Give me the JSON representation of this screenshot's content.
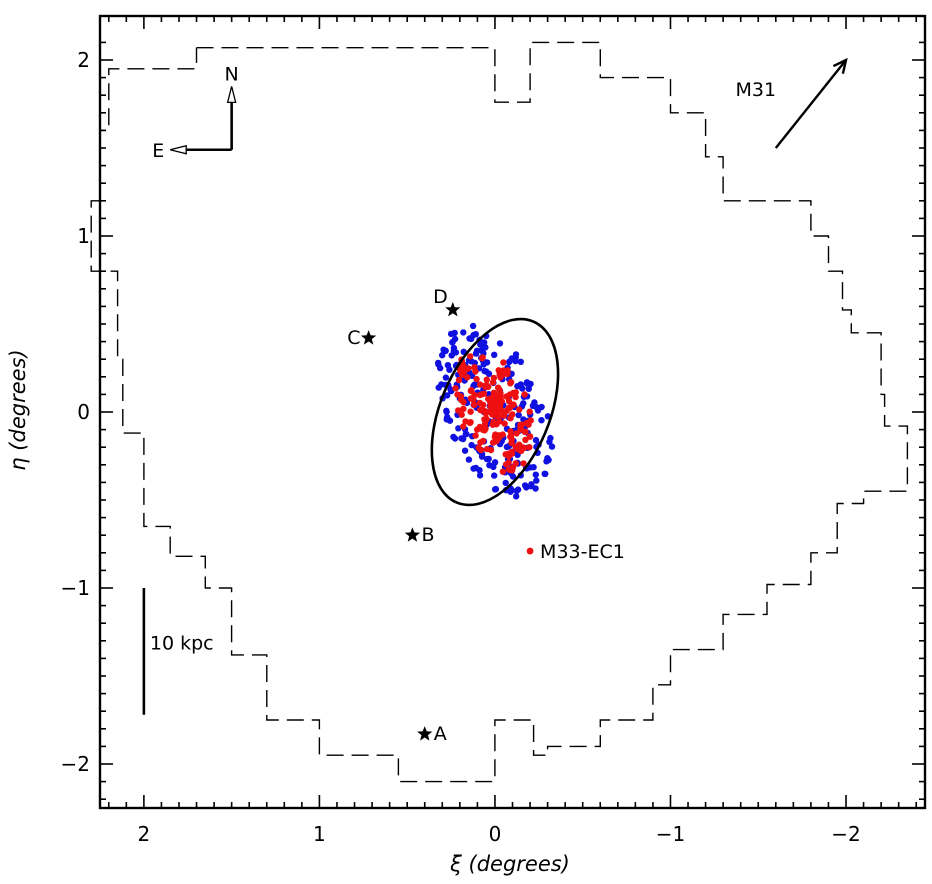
{
  "chart_data": {
    "type": "scatter",
    "title": "",
    "xlabel": "ξ  (degrees)",
    "ylabel": "η  (degrees)",
    "xlim": [
      2.25,
      -2.45
    ],
    "ylim": [
      -2.25,
      2.25
    ],
    "x_ticks": [
      2,
      1,
      0,
      -1,
      -2
    ],
    "x_tick_labels": [
      "2",
      "1",
      "0",
      "−1",
      "−2"
    ],
    "y_ticks": [
      -2,
      -1,
      0,
      1,
      2
    ],
    "y_tick_labels": [
      "−2",
      "−1",
      "0",
      "1",
      "2"
    ],
    "colors": {
      "blue": "#1010e0",
      "red": "#ee1010",
      "ink": "#000000"
    },
    "footprint": {
      "style": "dashed",
      "points": [
        [
          1.7,
          2.07
        ],
        [
          0.0,
          2.07
        ],
        [
          0.0,
          1.76
        ],
        [
          -0.2,
          1.76
        ],
        [
          -0.2,
          2.1
        ],
        [
          -0.6,
          2.1
        ],
        [
          -0.6,
          1.9
        ],
        [
          -1.0,
          1.9
        ],
        [
          -1.0,
          1.7
        ],
        [
          -1.2,
          1.7
        ],
        [
          -1.2,
          1.45
        ],
        [
          -1.3,
          1.45
        ],
        [
          -1.3,
          1.2
        ],
        [
          -1.8,
          1.2
        ],
        [
          -1.8,
          1.0
        ],
        [
          -1.9,
          1.0
        ],
        [
          -1.9,
          0.8
        ],
        [
          -1.98,
          0.8
        ],
        [
          -1.98,
          0.58
        ],
        [
          -2.03,
          0.58
        ],
        [
          -2.03,
          0.45
        ],
        [
          -2.2,
          0.45
        ],
        [
          -2.2,
          0.1
        ],
        [
          -2.22,
          0.1
        ],
        [
          -2.22,
          -0.08
        ],
        [
          -2.35,
          -0.08
        ],
        [
          -2.35,
          -0.45
        ],
        [
          -2.1,
          -0.45
        ],
        [
          -2.1,
          -0.52
        ],
        [
          -1.95,
          -0.52
        ],
        [
          -1.95,
          -0.8
        ],
        [
          -1.8,
          -0.8
        ],
        [
          -1.8,
          -0.98
        ],
        [
          -1.55,
          -0.98
        ],
        [
          -1.55,
          -1.15
        ],
        [
          -1.3,
          -1.15
        ],
        [
          -1.3,
          -1.35
        ],
        [
          -1.0,
          -1.35
        ],
        [
          -1.0,
          -1.55
        ],
        [
          -0.9,
          -1.55
        ],
        [
          -0.9,
          -1.75
        ],
        [
          -0.6,
          -1.75
        ],
        [
          -0.6,
          -1.9
        ],
        [
          -0.3,
          -1.9
        ],
        [
          -0.3,
          -1.95
        ],
        [
          -0.22,
          -1.95
        ],
        [
          -0.22,
          -1.75
        ],
        [
          0.0,
          -1.75
        ],
        [
          0.0,
          -2.1
        ],
        [
          0.55,
          -2.1
        ],
        [
          0.55,
          -1.95
        ],
        [
          1.0,
          -1.95
        ],
        [
          1.0,
          -1.75
        ],
        [
          1.3,
          -1.75
        ],
        [
          1.3,
          -1.38
        ],
        [
          1.5,
          -1.38
        ],
        [
          1.5,
          -1.0
        ],
        [
          1.65,
          -1.0
        ],
        [
          1.65,
          -0.82
        ],
        [
          1.85,
          -0.82
        ],
        [
          1.85,
          -0.65
        ],
        [
          2.0,
          -0.65
        ],
        [
          2.0,
          -0.12
        ],
        [
          2.12,
          -0.12
        ],
        [
          2.12,
          0.3
        ],
        [
          2.15,
          0.3
        ],
        [
          2.15,
          0.8
        ],
        [
          2.3,
          0.8
        ],
        [
          2.3,
          1.2
        ],
        [
          2.25,
          1.2
        ],
        [
          2.25,
          1.6
        ],
        [
          2.2,
          1.6
        ],
        [
          2.2,
          1.95
        ],
        [
          1.7,
          1.95
        ],
        [
          1.7,
          2.07
        ]
      ]
    },
    "ellipse": {
      "center": [
        0.0,
        0.0
      ],
      "semi_major": 0.56,
      "semi_minor": 0.31,
      "tilt_deg": 23
    },
    "series": [],
    "clusters": {
      "blue": {
        "count": 230,
        "semi_major": 0.52,
        "semi_minor": 0.28
      },
      "red": {
        "count": 190,
        "semi_major": 0.38,
        "semi_minor": 0.2
      }
    },
    "markers": [
      {
        "label": "A",
        "x": 0.4,
        "y": -1.83,
        "label_side": "right"
      },
      {
        "label": "B",
        "x": 0.47,
        "y": -0.7,
        "label_side": "right"
      },
      {
        "label": "C",
        "x": 0.72,
        "y": 0.42,
        "label_side": "left"
      },
      {
        "label": "D",
        "x": 0.24,
        "y": 0.58,
        "label_side": "above-left"
      }
    ],
    "ec1": {
      "label": "M33-EC1",
      "x": -0.2,
      "y": -0.79
    },
    "compass": {
      "north_label": "N",
      "east_label": "E",
      "origin": [
        1.5,
        1.49
      ],
      "north_tip": [
        1.5,
        1.85
      ],
      "east_tip": [
        1.85,
        1.49
      ]
    },
    "m31_arrow": {
      "label": "M31",
      "from": [
        -1.6,
        1.5
      ],
      "to": [
        -2.0,
        2.0
      ]
    },
    "scale_bar": {
      "label": "10 kpc",
      "x": 2.0,
      "y_from": -1.0,
      "y_to": -1.72
    }
  }
}
